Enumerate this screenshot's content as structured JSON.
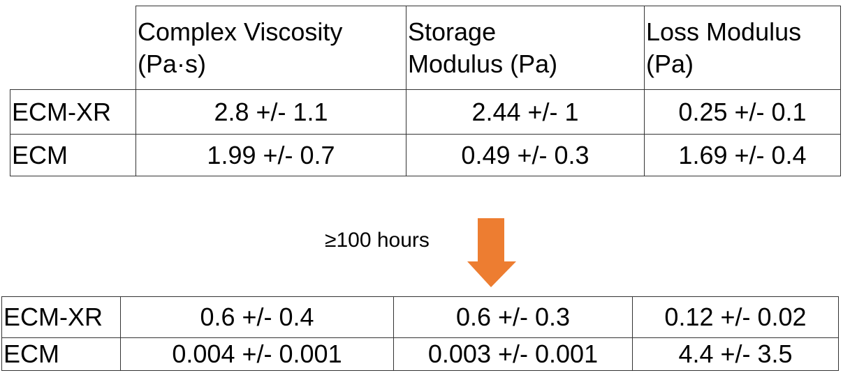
{
  "top_table": {
    "header": [
      "Complex Viscosity\n(Pa·s)",
      "Storage\nModulus (Pa)",
      "Loss Modulus\n(Pa)"
    ],
    "rows": [
      [
        "ECM-XR",
        "2.8 +/- 1.1",
        "2.44 +/- 1",
        "0.25 +/- 0.1"
      ],
      [
        "ECM",
        "1.99 +/- 0.7",
        "0.49 +/- 0.3",
        "1.69 +/- 0.4"
      ]
    ]
  },
  "annotation": "≥100 hours",
  "bottom_table": {
    "rows": [
      [
        "ECM-XR",
        "0.6 +/- 0.4",
        "0.6 +/- 0.3",
        "0.12 +/- 0.02"
      ],
      [
        "ECM",
        "0.004 +/- 0.001",
        "0.003 +/- 0.001",
        "4.4 +/- 3.5"
      ]
    ]
  }
}
